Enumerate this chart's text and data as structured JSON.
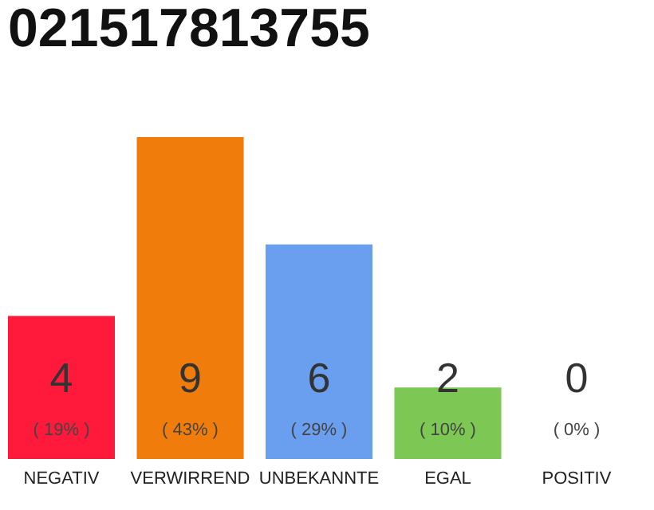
{
  "chart_data": {
    "type": "bar",
    "title": "021517813755",
    "categories": [
      "NEGATIV",
      "VERWIRREND",
      "UNBEKANNTE",
      "EGAL",
      "POSITIV"
    ],
    "values": [
      4,
      9,
      6,
      2,
      0
    ],
    "value_labels": [
      "4",
      "9",
      "6",
      "2",
      "0"
    ],
    "colors": [
      "#ff1a3c",
      "#f07d0b",
      "#6a9ff0",
      "#7dc855",
      "#c8c8c8"
    ],
    "tick_labels": "x",
    "grid": false,
    "annotations": [
      "( 19% )",
      "( 43% )",
      "( 29% )",
      "( 10% )",
      "( 0% )"
    ]
  }
}
